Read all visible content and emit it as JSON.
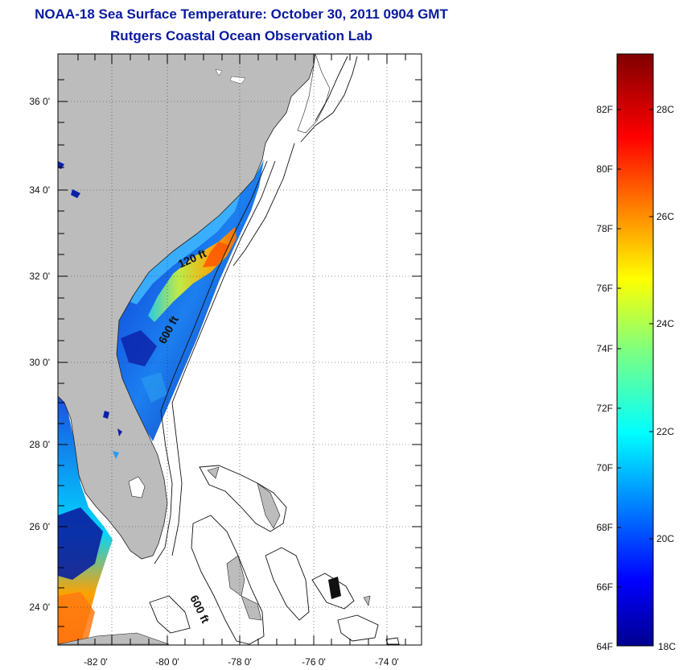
{
  "title": {
    "line1": "NOAA-18 Sea Surface Temperature:  October 30, 2011 0904 GMT",
    "line2": "Rutgers Coastal Ocean Observation Lab"
  },
  "map": {
    "lon_range": [
      -83,
      -73.3
    ],
    "lat_range": [
      23,
      37
    ],
    "lon_ticks": [
      {
        "value": -82,
        "label": "-82 0'"
      },
      {
        "value": -80,
        "label": "-80 0'"
      },
      {
        "value": -78,
        "label": "-78 0'"
      },
      {
        "value": -76,
        "label": "-76 0'"
      },
      {
        "value": -74,
        "label": "-74 0'"
      }
    ],
    "lat_ticks": [
      {
        "value": 36,
        "label": "36 0'"
      },
      {
        "value": 34,
        "label": "34 0'"
      },
      {
        "value": 32,
        "label": "32 0'"
      },
      {
        "value": 30,
        "label": "30 0'"
      },
      {
        "value": 28,
        "label": "28 0'"
      },
      {
        "value": 26,
        "label": "26 0'"
      },
      {
        "value": 24,
        "label": "24 0'"
      }
    ],
    "grid": "dotted",
    "contour_labels": [
      "120 ft",
      "600 ft",
      "600 ft"
    ],
    "land_color": "#bcbcbc",
    "no_data_color": "#ffffff"
  },
  "colorbar": {
    "min_c": 18,
    "max_c": 29.2,
    "fahrenheit_labels": [
      "82F",
      "80F",
      "78F",
      "76F",
      "74F",
      "72F",
      "70F",
      "68F",
      "66F",
      "64F"
    ],
    "celsius_labels": [
      "28C",
      "26C",
      "24C",
      "22C",
      "20C",
      "18C"
    ],
    "colormap": "jet"
  }
}
